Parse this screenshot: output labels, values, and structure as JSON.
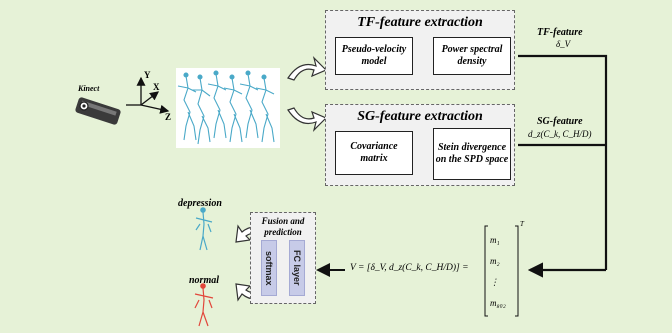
{
  "kinect": {
    "label": "Kinect"
  },
  "axes": {
    "x": "X",
    "y": "Y",
    "z": "Z"
  },
  "tf": {
    "title": "TF-feature extraction",
    "box1": "Pseudo-velocity model",
    "box2": "Power spectral density",
    "feature_label": "TF-feature",
    "feature_symbol": "δ_V"
  },
  "sg": {
    "title": "SG-feature extraction",
    "box1": "Covariance matrix",
    "box2": "Stein divergence on the SPD space",
    "feature_label": "SG-feature",
    "feature_symbol": "d_z(C_k, C_H/D)"
  },
  "fusion": {
    "title": "Fusion and prediction",
    "softmax": "softmax",
    "fc": "FC layer"
  },
  "equation": {
    "lhs": "V = [δ_V, d_z(C_k, C_H/D)] =",
    "vector": [
      "m₁",
      "m₂",
      "⋮",
      "m₈₀₂"
    ],
    "sup": "T"
  },
  "outputs": {
    "top": "depression",
    "bottom": "normal"
  },
  "colors": {
    "background": "#e6f2d7",
    "skeleton_blue": "#4aa9c8",
    "skeleton_red": "#e2473b",
    "bar": "#c7cbe8"
  }
}
